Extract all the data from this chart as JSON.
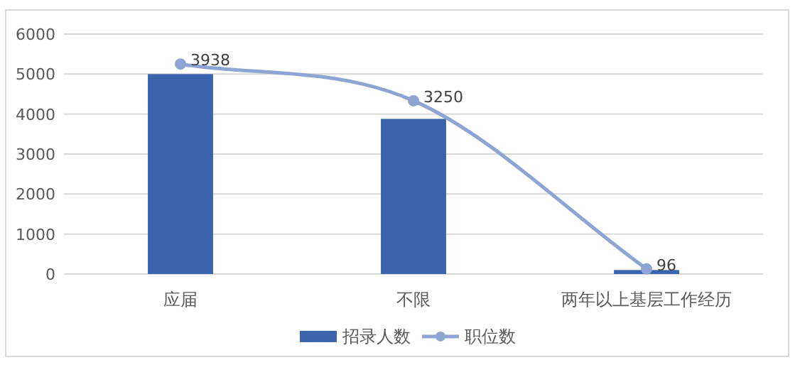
{
  "chart_data": {
    "type": "bar",
    "categories": [
      "应届",
      "不限",
      "两年以上基层工作经历"
    ],
    "series": [
      {
        "name": "招录人数",
        "color": "#3b64ad",
        "values": [
          5000,
          3880,
          100
        ]
      },
      {
        "name": "职位数",
        "type": "line",
        "axis": "y2",
        "color": "#8ea5d4",
        "values": [
          3938,
          3250,
          96
        ],
        "data_labels": true,
        "marker": "circle"
      }
    ],
    "ylim": [
      0,
      6000
    ],
    "yticks": [
      0,
      1000,
      2000,
      3000,
      4000,
      5000,
      6000
    ],
    "y2lim": [
      0,
      4500
    ],
    "tick_labels": "x,y",
    "grid": "y",
    "legend": "bottom"
  }
}
